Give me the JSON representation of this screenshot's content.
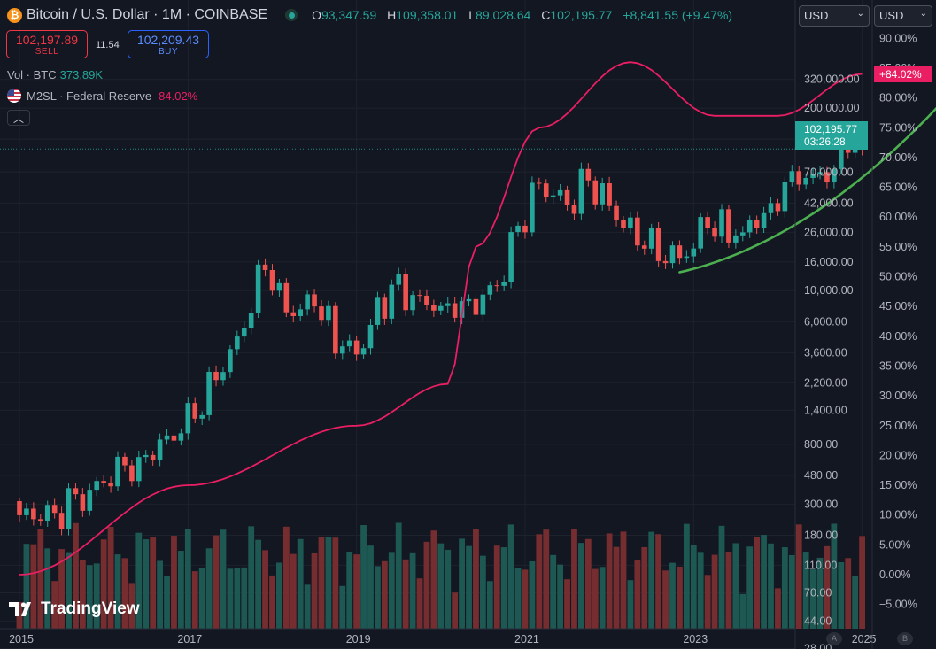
{
  "header": {
    "title": "Bitcoin / U.S. Dollar · 1M · COINBASE",
    "ohlc": [
      {
        "label": "O",
        "value": "93,347.59"
      },
      {
        "label": "H",
        "value": "109,358.01"
      },
      {
        "label": "L",
        "value": "89,028.64"
      },
      {
        "label": "C",
        "value": "102,195.77"
      },
      {
        "label": "",
        "value": "+8,841.55 (+9.47%)"
      }
    ]
  },
  "trade": {
    "sell_price": "102,197.89",
    "sell_label": "SELL",
    "spread": "11.54",
    "buy_price": "102,209.43",
    "buy_label": "BUY"
  },
  "volume_legend": {
    "label": "Vol · BTC",
    "value": "373.89K"
  },
  "m2_legend": {
    "label": "M2SL · Federal Reserve",
    "value": "84.02%"
  },
  "currency_selects": [
    "USD",
    "USD"
  ],
  "last_price": {
    "price": "102,195.77",
    "countdown": "03:26:28"
  },
  "m2_current_label": "+84.02%",
  "axis_buttons": [
    "A",
    "B"
  ],
  "watermark": "TradingView",
  "colors": {
    "up": "#26a69a",
    "down": "#ef5350",
    "m2_line": "#e91e63",
    "trend_line": "#4caf50",
    "background": "#131722"
  },
  "chart_data": {
    "type": "candlestick",
    "y_scale": "log",
    "x_ticks": [
      "2015",
      "2017",
      "2019",
      "2021",
      "2023",
      "2025"
    ],
    "y_ticks": [
      "320,000.00",
      "200,000.00",
      "120,000.00",
      "70,000.00",
      "42,000.00",
      "26,000.00",
      "16,000.00",
      "10,000.00",
      "6,000.00",
      "3,600.00",
      "2,200.00",
      "1,400.00",
      "800.00",
      "480.00",
      "300.00",
      "180.00",
      "110.00",
      "70.00",
      "44.00",
      "28.00"
    ],
    "y_ticks_right": [
      "90.00%",
      "85.00%",
      "80.00%",
      "75.00%",
      "70.00%",
      "65.00%",
      "60.00%",
      "55.00%",
      "50.00%",
      "45.00%",
      "40.00%",
      "35.00%",
      "30.00%",
      "25.00%",
      "20.00%",
      "15.00%",
      "10.00%",
      "5.00%",
      "0.00%",
      "−5.00%"
    ],
    "close_anchors": [
      {
        "date": "2015-01",
        "close": 250
      },
      {
        "date": "2015-06",
        "close": 260
      },
      {
        "date": "2015-11",
        "close": 380
      },
      {
        "date": "2016-06",
        "close": 650
      },
      {
        "date": "2016-12",
        "close": 960
      },
      {
        "date": "2017-05",
        "close": 2300
      },
      {
        "date": "2017-08",
        "close": 4700
      },
      {
        "date": "2017-12",
        "close": 14000
      },
      {
        "date": "2018-03",
        "close": 7000
      },
      {
        "date": "2018-07",
        "close": 7700
      },
      {
        "date": "2018-11",
        "close": 4000
      },
      {
        "date": "2019-01",
        "close": 3500
      },
      {
        "date": "2019-06",
        "close": 11000
      },
      {
        "date": "2019-12",
        "close": 7200
      },
      {
        "date": "2020-03",
        "close": 6400
      },
      {
        "date": "2020-09",
        "close": 10800
      },
      {
        "date": "2020-12",
        "close": 29000
      },
      {
        "date": "2021-03",
        "close": 58000
      },
      {
        "date": "2021-07",
        "close": 41000
      },
      {
        "date": "2021-10",
        "close": 61000
      },
      {
        "date": "2022-06",
        "close": 19900
      },
      {
        "date": "2022-11",
        "close": 17100
      },
      {
        "date": "2023-03",
        "close": 28000
      },
      {
        "date": "2023-08",
        "close": 26000
      },
      {
        "date": "2023-12",
        "close": 42000
      },
      {
        "date": "2024-03",
        "close": 71000
      },
      {
        "date": "2024-08",
        "close": 59000
      },
      {
        "date": "2024-11",
        "close": 96000
      },
      {
        "date": "2025-01",
        "close": 102195.77
      }
    ],
    "m2_percent_anchors": [
      {
        "date": "2015-01",
        "value": 0
      },
      {
        "date": "2017-01",
        "value": 15
      },
      {
        "date": "2019-01",
        "value": 25
      },
      {
        "date": "2020-02",
        "value": 32
      },
      {
        "date": "2020-06",
        "value": 55
      },
      {
        "date": "2021-03",
        "value": 75
      },
      {
        "date": "2022-04",
        "value": 86
      },
      {
        "date": "2023-04",
        "value": 77
      },
      {
        "date": "2024-01",
        "value": 77
      },
      {
        "date": "2025-01",
        "value": 84.02
      }
    ],
    "trend_line": [
      {
        "date": "2022-11",
        "price": 13500
      },
      {
        "date": "2025-12",
        "price": 210000
      }
    ]
  }
}
